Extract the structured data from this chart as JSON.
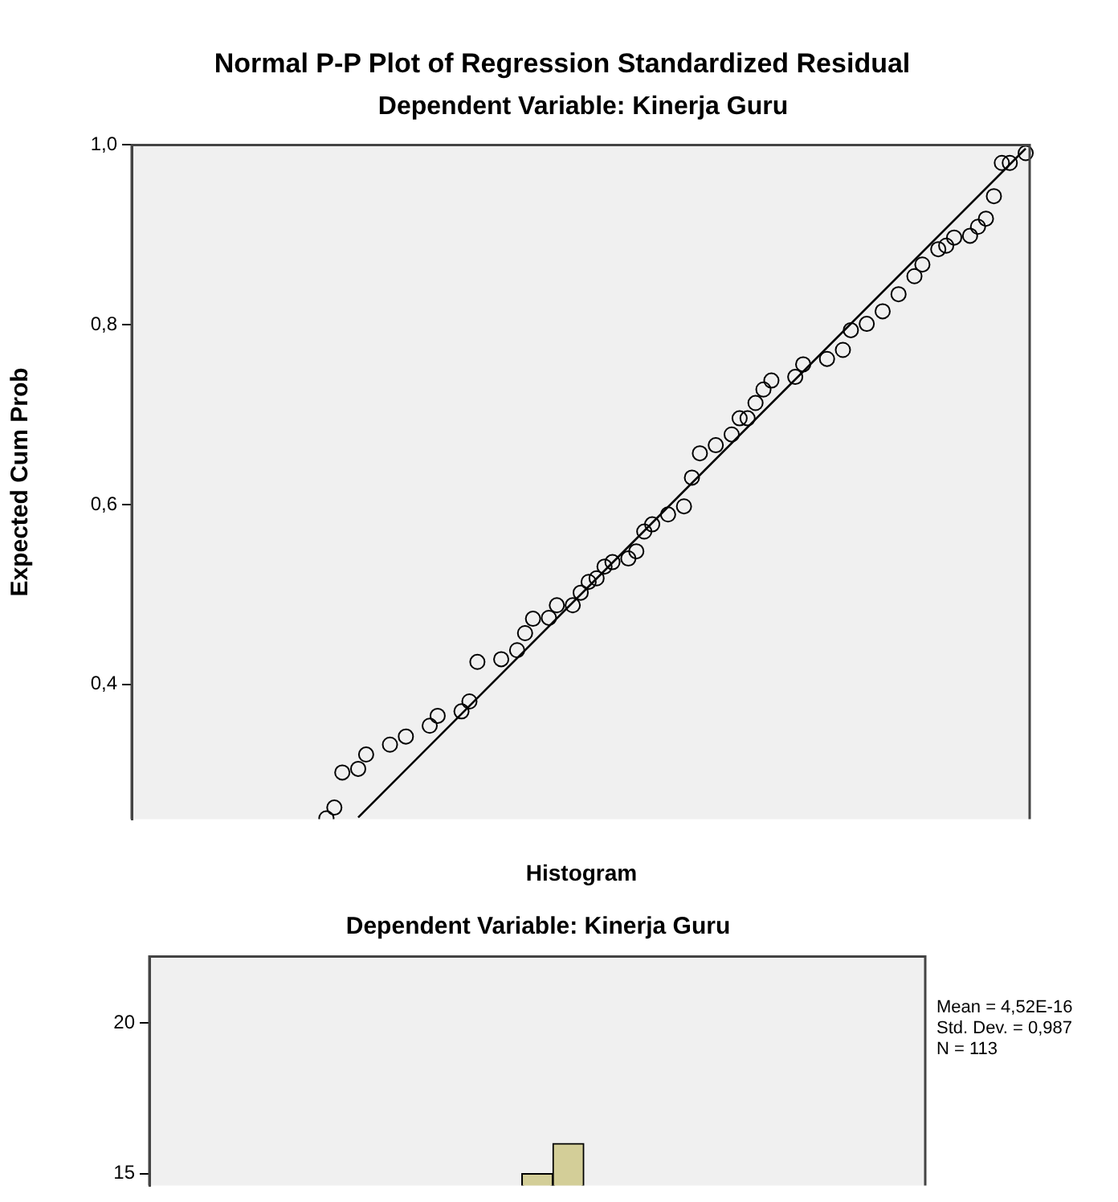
{
  "chart_data": [
    {
      "type": "scatter",
      "title": "Normal P-P Plot of Regression Standardized Residual",
      "subtitle": "Dependent Variable: Kinerja Guru",
      "ylabel": "Expected Cum Prob",
      "ylim": [
        0.25,
        1
      ],
      "yticks": [
        {
          "value": 0.4,
          "label": "0,4"
        },
        {
          "value": 0.6,
          "label": "0,6"
        },
        {
          "value": 0.8,
          "label": "0,8"
        },
        {
          "value": 1.0,
          "label": "1,0"
        }
      ],
      "tick_labels": "y",
      "categories": [
        null,
        null,
        null,
        null,
        null,
        null,
        null,
        null,
        null,
        null,
        null,
        null,
        null,
        null,
        null,
        null,
        null,
        null,
        null,
        null,
        null,
        null,
        null,
        null,
        null,
        null,
        null,
        null,
        null,
        null,
        null,
        null,
        null,
        null,
        null,
        null,
        null,
        null,
        null,
        null,
        null,
        null,
        null,
        null,
        null,
        null,
        null,
        null,
        null,
        null,
        null,
        null,
        null,
        null,
        null,
        null,
        null,
        null,
        null,
        null,
        null,
        null,
        null,
        null,
        null,
        null,
        null,
        null,
        null,
        null,
        null,
        null,
        null,
        null,
        null,
        null,
        null,
        null,
        null,
        null,
        null,
        null,
        null,
        null,
        null,
        null,
        null,
        null,
        null,
        null,
        null,
        null,
        null,
        null,
        null,
        null,
        null,
        null,
        null,
        null,
        null,
        null,
        null,
        null,
        null,
        null,
        null,
        null,
        null,
        null,
        null,
        null,
        null
      ],
      "series": [
        {
          "type": "scatter",
          "color": "#000000",
          "marker": "circle",
          "values": [
            null,
            null,
            null,
            null,
            null,
            null,
            null,
            null,
            null,
            null,
            null,
            null,
            null,
            null,
            null,
            null,
            null,
            null,
            null,
            null,
            null,
            null,
            null,
            null,
            0.251,
            0.263,
            0.302,
            null,
            0.306,
            0.322,
            null,
            null,
            0.333,
            null,
            0.342,
            null,
            null,
            0.354,
            0.365,
            null,
            null,
            0.37,
            0.381,
            0.425,
            null,
            null,
            0.428,
            null,
            0.438,
            0.457,
            0.473,
            null,
            0.474,
            0.488,
            null,
            0.488,
            0.502,
            0.514,
            0.518,
            0.531,
            0.536,
            null,
            0.54,
            0.548,
            0.57,
            0.578,
            null,
            0.589,
            null,
            0.598,
            0.63,
            0.657,
            null,
            0.666,
            null,
            0.678,
            0.696,
            0.696,
            0.713,
            0.728,
            0.738,
            null,
            null,
            0.742,
            0.756,
            null,
            null,
            0.762,
            null,
            0.772,
            0.794,
            null,
            0.801,
            null,
            0.815,
            null,
            0.834,
            null,
            0.854,
            0.867,
            null,
            0.884,
            0.888,
            0.897,
            null,
            0.899,
            0.909,
            0.918,
            0.943,
            0.98,
            0.98,
            null,
            0.991
          ]
        },
        {
          "type": "line",
          "color": "#000000",
          "marker": "none",
          "values": [
            null,
            null,
            null,
            null,
            null,
            null,
            null,
            null,
            null,
            null,
            null,
            null,
            null,
            null,
            null,
            null,
            null,
            null,
            null,
            null,
            null,
            null,
            null,
            null,
            null,
            null,
            null,
            null,
            0.252,
            null,
            null,
            null,
            null,
            null,
            null,
            null,
            null,
            null,
            null,
            null,
            null,
            null,
            null,
            null,
            null,
            null,
            null,
            null,
            null,
            null,
            null,
            null,
            null,
            null,
            null,
            null,
            null,
            null,
            null,
            null,
            null,
            null,
            null,
            null,
            null,
            null,
            null,
            null,
            null,
            null,
            null,
            null,
            null,
            null,
            null,
            null,
            null,
            null,
            null,
            null,
            null,
            null,
            null,
            null,
            null,
            null,
            null,
            null,
            null,
            null,
            null,
            null,
            null,
            null,
            null,
            null,
            null,
            null,
            null,
            null,
            null,
            null,
            null,
            null,
            null,
            null,
            null,
            null,
            null,
            null,
            null,
            null,
            0.996
          ]
        }
      ]
    },
    {
      "type": "bar",
      "title": "Histogram",
      "subtitle": "Dependent Variable: Kinerja Guru",
      "categories": [
        null,
        null,
        null,
        null,
        null,
        null,
        null,
        null,
        null,
        null,
        null,
        null,
        null,
        null,
        null,
        null,
        null,
        null,
        null,
        null,
        null,
        null,
        null,
        null,
        null
      ],
      "values": [
        null,
        null,
        null,
        null,
        null,
        null,
        null,
        null,
        null,
        null,
        null,
        null,
        15,
        16,
        null,
        null,
        null,
        null,
        null,
        null,
        null,
        null,
        null,
        null,
        null
      ],
      "color": "#d3ce98",
      "ylim": [
        14.6,
        22.2
      ],
      "yticks": [
        15,
        20
      ],
      "tick_labels": "y",
      "annotations": [
        "Mean = 4,52E-16",
        "Std. Dev. = 0,987",
        "N = 113"
      ]
    }
  ]
}
